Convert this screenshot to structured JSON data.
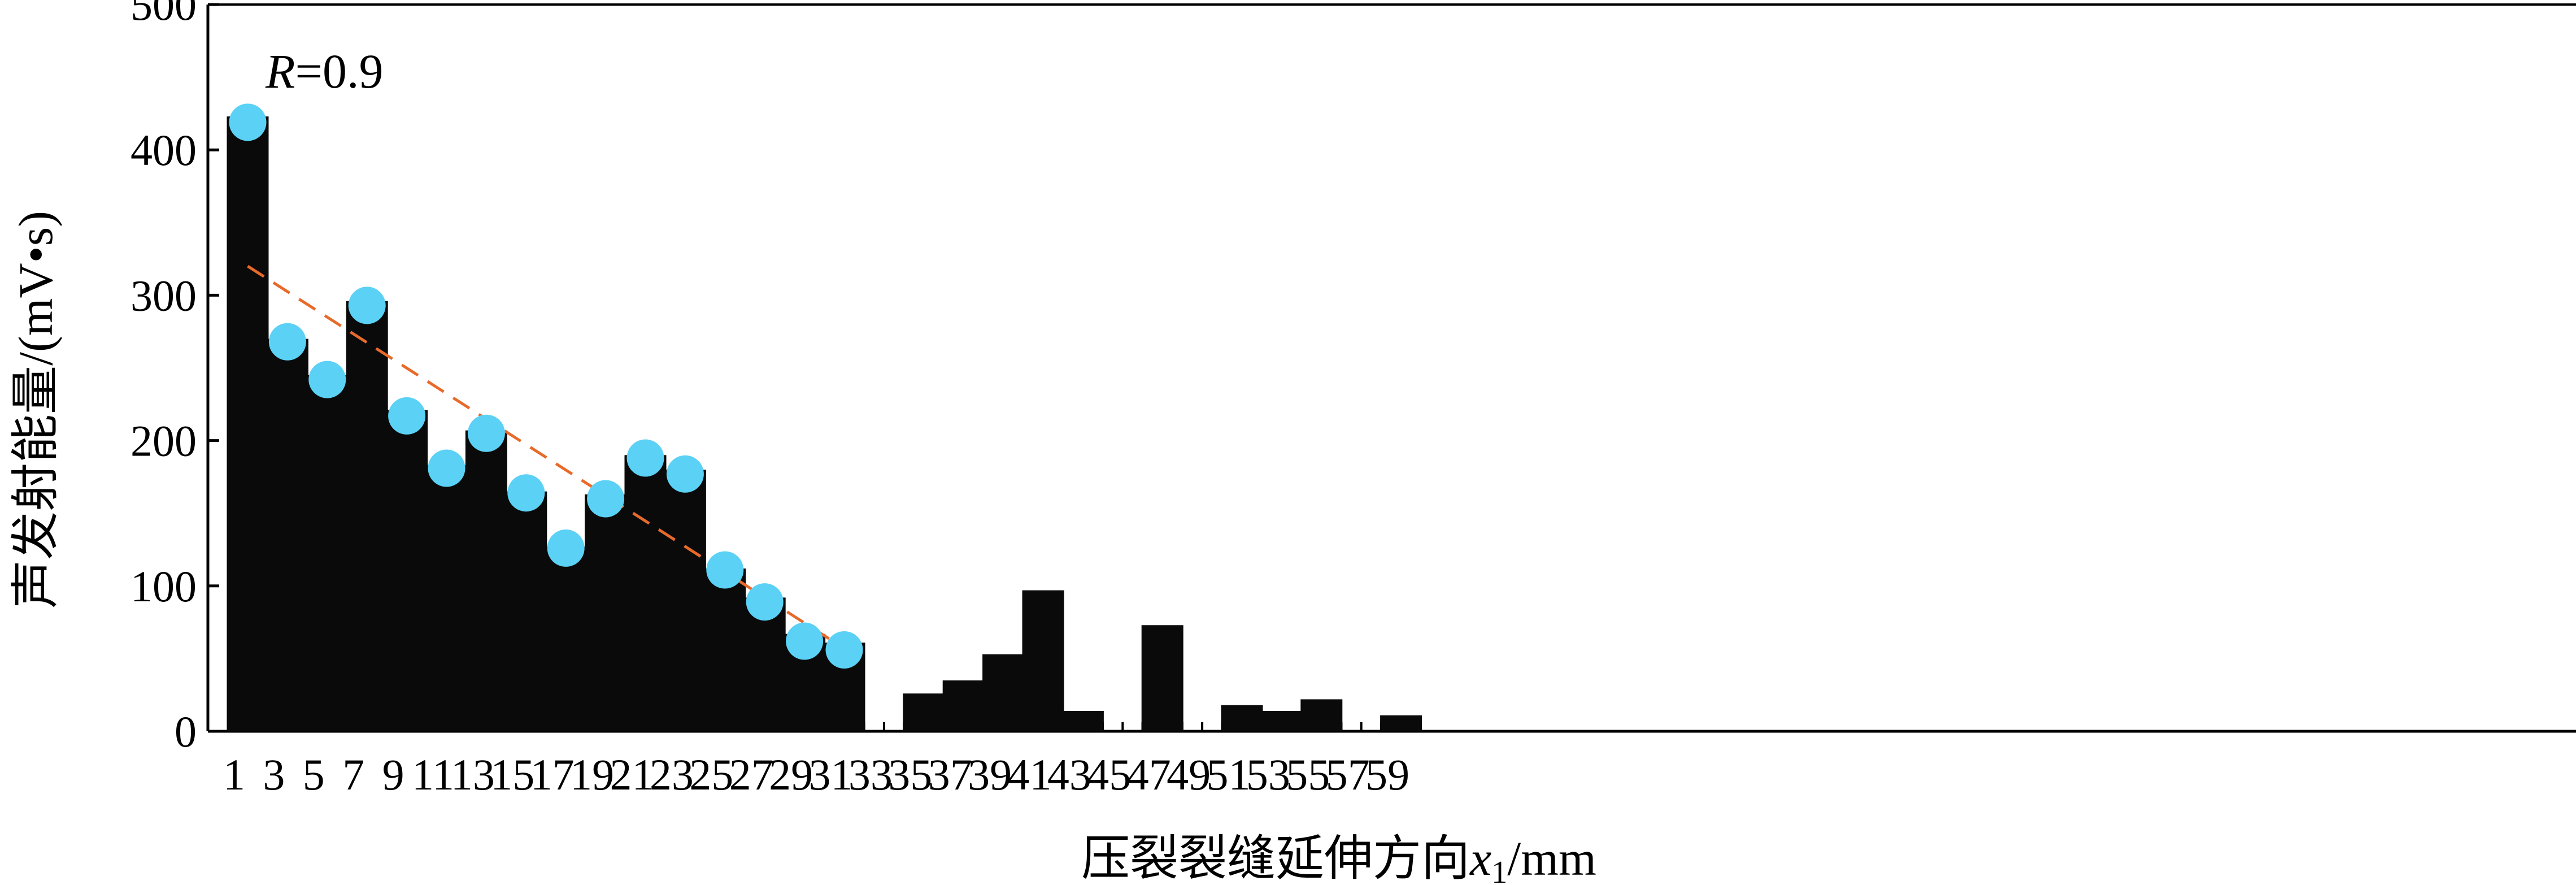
{
  "chart_data": {
    "type": "bar",
    "xlabel": "压裂裂缝延伸方向x1/mm",
    "xlabel_parts": {
      "main": "压裂裂缝延伸方向",
      "var": "x",
      "sub": "1",
      "unit": "/mm"
    },
    "ylabel": "声发射能量/(mV•s)",
    "ylim": [
      0,
      500
    ],
    "yticks": [
      0,
      100,
      200,
      300,
      400,
      500
    ],
    "grid": false,
    "annotation": {
      "var": "R",
      "text": "=0.9"
    },
    "categories": [
      "1",
      "3",
      "5",
      "7",
      "9",
      "11",
      "13",
      "15",
      "17",
      "19",
      "21",
      "23",
      "25",
      "27",
      "29",
      "31",
      "33",
      "35",
      "37",
      "39",
      "41",
      "43",
      "45",
      "47",
      "49",
      "51",
      "53",
      "55",
      "57",
      "59"
    ],
    "values": [
      423,
      270,
      245,
      296,
      221,
      183,
      207,
      165,
      127,
      163,
      190,
      180,
      112,
      92,
      67,
      61,
      0,
      26,
      35,
      53,
      97,
      14,
      0,
      73,
      0,
      18,
      14,
      22,
      0,
      11
    ],
    "markers": {
      "color": "#5bd1f5",
      "x": [
        "1",
        "3",
        "5",
        "7",
        "9",
        "11",
        "13",
        "15",
        "17",
        "19",
        "21",
        "23",
        "25",
        "27",
        "29",
        "31"
      ],
      "y": [
        419,
        268,
        242,
        293,
        217,
        181,
        205,
        164,
        126,
        160,
        188,
        177,
        111,
        89,
        62,
        56
      ]
    },
    "trendline": {
      "color": "#e86a2a",
      "style": "dashed",
      "x": [
        "1",
        "31"
      ],
      "y": [
        320,
        57
      ]
    },
    "bar_color": "#0a0a0a"
  }
}
